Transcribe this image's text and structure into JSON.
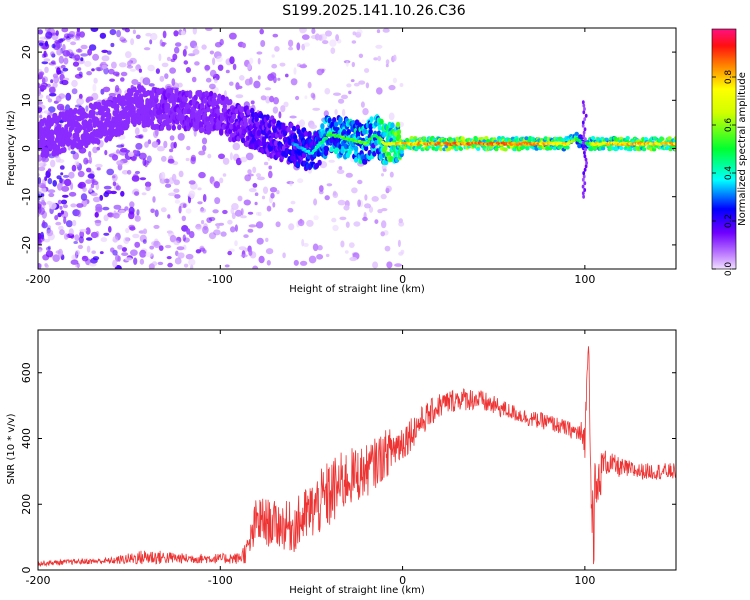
{
  "title": "S199.2025.141.10.26.C36",
  "chart_data": [
    {
      "type": "heatmap",
      "xlabel": "Height of straight line (km)",
      "ylabel": "Frequency (Hz)",
      "xlim": [
        -200,
        150
      ],
      "ylim": [
        -25,
        25
      ],
      "xticks": [
        -200,
        -100,
        0,
        100
      ],
      "yticks": [
        20,
        10,
        0,
        -10,
        -20
      ],
      "colorbar": {
        "label": "Normalized spectral amplitude",
        "range": [
          0,
          1
        ],
        "ticks": [
          "0.0",
          "0.2",
          "0.4",
          "0.6",
          "0.8"
        ]
      },
      "ridge": {
        "x": [
          -200,
          -180,
          -160,
          -145,
          -130,
          -115,
          -100,
          -90,
          -80,
          -70,
          -60,
          -50,
          -40,
          -30,
          -20,
          -15,
          -10,
          0,
          20,
          40,
          60,
          80,
          90,
          95,
          100,
          105,
          120,
          150
        ],
        "frequency": [
          2,
          4,
          6,
          9,
          8,
          8,
          7,
          5,
          4,
          2,
          1,
          -1,
          3,
          2,
          1,
          3,
          1,
          1,
          1,
          1,
          1,
          1,
          1,
          2,
          1,
          1,
          1,
          1
        ],
        "amplitude": [
          0.05,
          0.07,
          0.1,
          0.15,
          0.2,
          0.2,
          0.2,
          0.25,
          0.3,
          0.3,
          0.35,
          0.4,
          0.55,
          0.6,
          0.6,
          0.5,
          0.75,
          0.85,
          0.9,
          0.9,
          0.9,
          0.85,
          0.8,
          0.6,
          0.45,
          0.8,
          0.85,
          0.85
        ]
      }
    },
    {
      "type": "line",
      "xlabel": "Height of straight line (km)",
      "ylabel": "SNR (10 * v/v)",
      "xlim": [
        -200,
        150
      ],
      "ylim": [
        0,
        730
      ],
      "xticks": [
        -200,
        -100,
        0,
        100
      ],
      "yticks": [
        0,
        200,
        400,
        600
      ],
      "color": "#ee3333",
      "series": [
        {
          "x": [
            -200,
            -180,
            -160,
            -140,
            -120,
            -100,
            -90,
            -85,
            -80,
            -70,
            -60,
            -50,
            -40,
            -30,
            -20,
            -10,
            0,
            10,
            20,
            30,
            40,
            50,
            60,
            70,
            80,
            90,
            95,
            100,
            102,
            104,
            110,
            120,
            130,
            140,
            150
          ],
          "values": [
            20,
            25,
            28,
            40,
            35,
            35,
            35,
            60,
            150,
            140,
            130,
            180,
            230,
            280,
            300,
            350,
            390,
            450,
            500,
            520,
            520,
            500,
            480,
            460,
            450,
            430,
            420,
            400,
            700,
            150,
            330,
            310,
            300,
            300,
            300
          ],
          "noise": [
            8,
            8,
            10,
            25,
            15,
            15,
            18,
            40,
            80,
            70,
            80,
            90,
            110,
            90,
            80,
            75,
            60,
            45,
            40,
            35,
            35,
            30,
            25,
            25,
            25,
            25,
            25,
            60,
            20,
            180,
            40,
            30,
            25,
            25,
            25
          ]
        }
      ]
    }
  ]
}
